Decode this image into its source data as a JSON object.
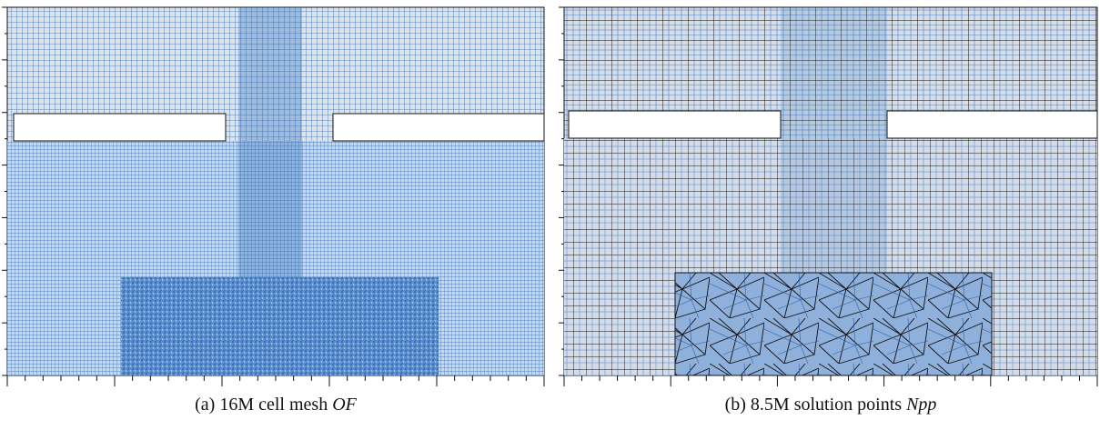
{
  "figure": {
    "panels": [
      {
        "label": "(a)",
        "caption": "16M cell mesh",
        "name": "OF"
      },
      {
        "label": "(b)",
        "caption": "8.5M solution points",
        "name": "Npp"
      }
    ]
  }
}
